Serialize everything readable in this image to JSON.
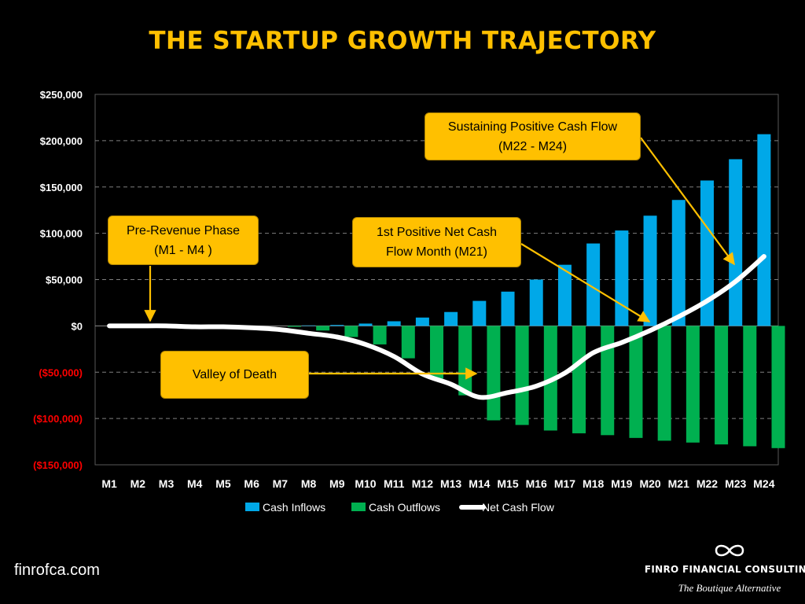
{
  "page": {
    "title": "THE STARTUP GROWTH TRAJECTORY",
    "website": "finrofca.com",
    "brand_name": "FINRO FINANCIAL CONSULTING",
    "brand_tagline": "The Boutique Alternative",
    "brand_icon": "infinity-logo"
  },
  "colors": {
    "title": "#FFC000",
    "inflows": "#00A8E8",
    "outflows": "#00B050",
    "net": "#FFFFFF",
    "negative_tick": "#FF0000",
    "callout": "#FFC000"
  },
  "chart_data": {
    "type": "bar",
    "categories": [
      "M1",
      "M2",
      "M3",
      "M4",
      "M5",
      "M6",
      "M7",
      "M8",
      "M9",
      "M10",
      "M11",
      "M12",
      "M13",
      "M14",
      "M15",
      "M16",
      "M17",
      "M18",
      "M19",
      "M20",
      "M21",
      "M22",
      "M23",
      "M24"
    ],
    "ylim": [
      -150000,
      250000
    ],
    "yticks": [
      250000,
      200000,
      150000,
      100000,
      50000,
      0,
      -50000,
      -100000,
      -150000
    ],
    "ytick_labels": [
      "$250,000",
      "$200,000",
      "$150,000",
      "$100,000",
      "$50,000",
      "$0",
      "($50,000)",
      "($100,000)",
      "($150,000)"
    ],
    "grid": true,
    "legend_position": "bottom",
    "series": [
      {
        "name": "Cash Inflows",
        "type": "bar",
        "color": "#00A8E8",
        "values": [
          0,
          0,
          0,
          0,
          0,
          0,
          0,
          500,
          1000,
          2500,
          5000,
          9000,
          15000,
          27000,
          37000,
          50000,
          66000,
          89000,
          103000,
          119000,
          136000,
          157000,
          180000,
          207000
        ]
      },
      {
        "name": "Cash Outflows",
        "type": "bar",
        "color": "#00B050",
        "values": [
          0,
          0,
          0,
          0,
          0,
          0,
          -1000,
          -5000,
          -12000,
          -20000,
          -35000,
          -57000,
          -75000,
          -102000,
          -107000,
          -113000,
          -116000,
          -118000,
          -121000,
          -124000,
          -126000,
          -128000,
          -130000,
          -132000
        ]
      },
      {
        "name": "Net Cash Flow",
        "type": "line",
        "color": "#FFFFFF",
        "values": [
          0,
          0,
          0,
          -1000,
          -1000,
          -2000,
          -4000,
          -8000,
          -12000,
          -20000,
          -33000,
          -52000,
          -63000,
          -77000,
          -72000,
          -65000,
          -51000,
          -29000,
          -18000,
          -5000,
          10000,
          27000,
          48000,
          75000
        ]
      }
    ],
    "annotations": [
      {
        "id": "pre_revenue",
        "lines": [
          "Pre-Revenue Phase",
          "(M1 - M4 )"
        ]
      },
      {
        "id": "valley",
        "lines": [
          "Valley of Death"
        ]
      },
      {
        "id": "first_positive",
        "lines": [
          "1st Positive Net Cash",
          "Flow Month (M21)"
        ]
      },
      {
        "id": "sustaining",
        "lines": [
          "Sustaining Positive Cash Flow",
          "(M22 - M24)"
        ]
      }
    ]
  }
}
